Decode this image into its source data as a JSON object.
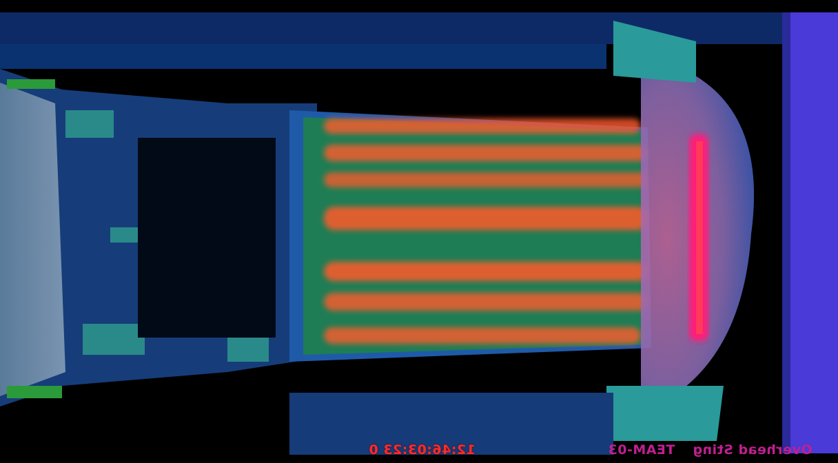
{
  "frame": {
    "colormap": "thermal-false-color",
    "mirrored": true,
    "colors": {
      "background": "#000000",
      "cool": "#1f5aa8",
      "teal": "#2a9a9a",
      "warm": "#2fc23a",
      "hot": "#ff5a2a",
      "hottest": "#ff1a7a",
      "plate": "#4a3ad8"
    }
  },
  "overlay": {
    "timestamp": "12:46:03:23 0",
    "unit": "TEAM-03",
    "view": "Overhead Sting"
  }
}
